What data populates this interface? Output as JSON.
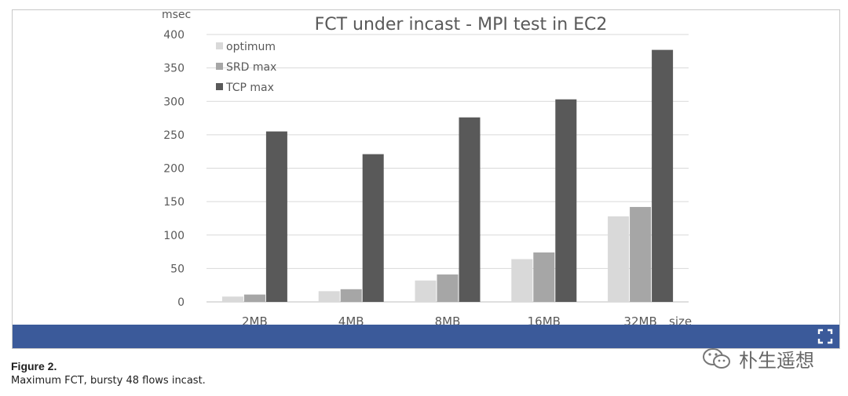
{
  "figure": {
    "caption_label": "Figure 2.",
    "caption_text": "Maximum FCT, bursty 48 flows incast.",
    "expand_icon": "expand-icon",
    "frame_color": "#3b5a9a"
  },
  "watermark": {
    "text": "朴生遥想",
    "icon": "wechat-icon"
  },
  "chart_data": {
    "type": "bar",
    "title": "FCT under incast - MPI test in EC2",
    "ylabel": "msec",
    "xlabel": "size",
    "ylim": [
      0,
      400
    ],
    "yticks": [
      0,
      50,
      100,
      150,
      200,
      250,
      300,
      350,
      400
    ],
    "grid": true,
    "legend_position": "top-left",
    "categories": [
      "2MB",
      "4MB",
      "8MB",
      "16MB",
      "32MB"
    ],
    "series": [
      {
        "name": "optimum",
        "color": "#d9d9d9",
        "values": [
          8,
          16,
          32,
          64,
          128
        ]
      },
      {
        "name": "SRD max",
        "color": "#a6a6a6",
        "values": [
          11,
          19,
          41,
          74,
          142
        ]
      },
      {
        "name": "TCP max",
        "color": "#595959",
        "values": [
          255,
          221,
          276,
          303,
          377
        ]
      }
    ]
  }
}
